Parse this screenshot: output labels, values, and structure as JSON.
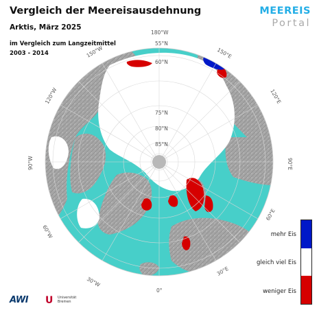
{
  "header": {
    "title": "Vergleich der Meereisausdehnung",
    "subtitle": "Arktis, März 2025",
    "comparison": "im Vergleich zum Langzeitmittel",
    "period": "2003 - 2014"
  },
  "logo": {
    "line1": "MEEREIS",
    "line2": "Portal"
  },
  "map": {
    "projection": "north-polar-stereographic",
    "latitude_labels": [
      "55°N",
      "60°N",
      "75°N",
      "80°N",
      "85°N"
    ],
    "longitude_labels": [
      "180°W",
      "150°E",
      "120°E",
      "90°E",
      "60°E",
      "30°E",
      "0°",
      "30°W",
      "60°W",
      "90°W",
      "120°W",
      "150°W"
    ],
    "colors": {
      "ocean": "#47cfc9",
      "land": "#a9a9a9",
      "ice": "#ffffff",
      "more_ice": "#0018c8",
      "less_ice": "#d60000"
    }
  },
  "legend": {
    "more": "mehr Eis",
    "same": "gleich viel Eis",
    "less": "weniger Eis",
    "colors": [
      "#0018c8",
      "#ffffff",
      "#d60000"
    ]
  },
  "footer": {
    "awi_logo": "AWI",
    "uhb_logo": "U",
    "uhb_text_1": "Universität",
    "uhb_text_2": "Bremen"
  }
}
